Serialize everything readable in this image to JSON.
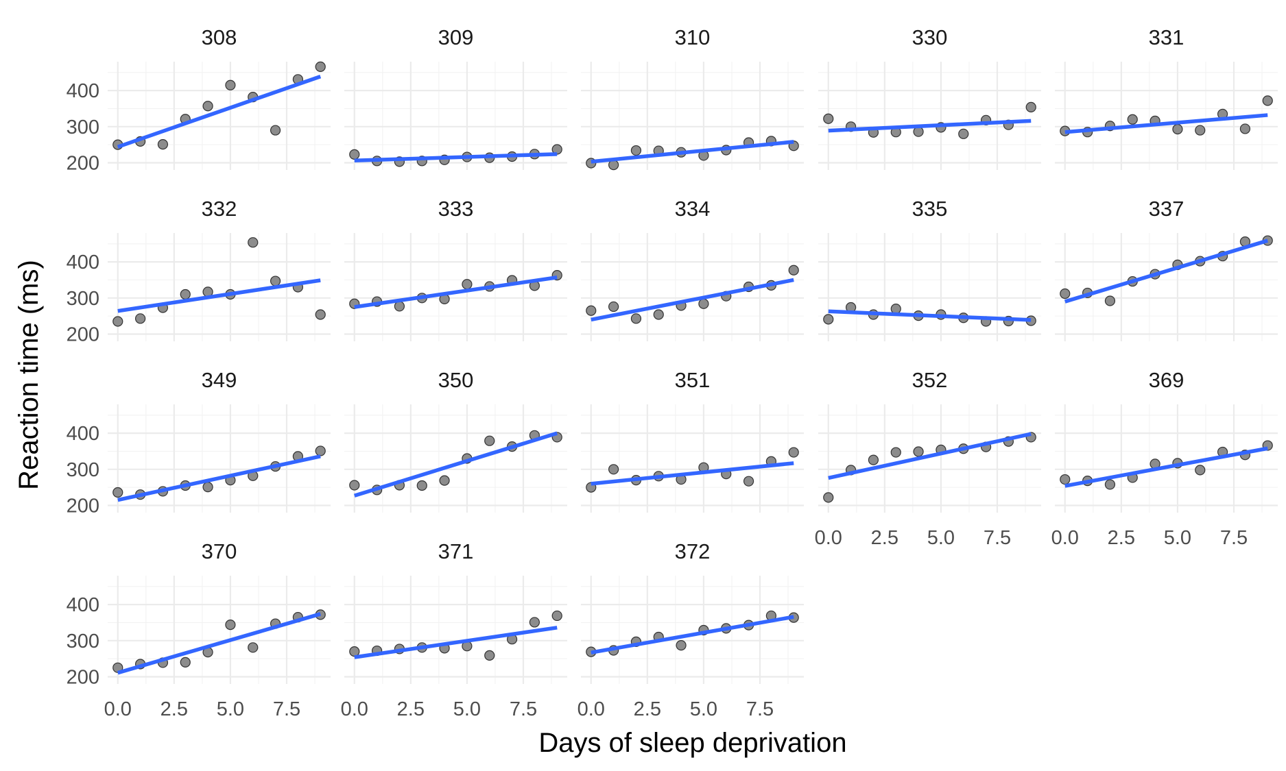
{
  "chart_data": {
    "type": "scatter",
    "subtitle": "",
    "xlabel": "Days of sleep deprivation",
    "ylabel": "Reaction time (ms)",
    "xlim": [
      -0.45,
      9.45
    ],
    "ylim": [
      180,
      480
    ],
    "x_ticks": [
      0,
      2.5,
      5,
      7.5
    ],
    "x_tick_labels": [
      "0.0",
      "2.5",
      "5.0",
      "7.5"
    ],
    "y_ticks": [
      200,
      300,
      400
    ],
    "y_tick_labels": [
      "200",
      "300",
      "400"
    ],
    "grid": true,
    "facet_ncol": 5,
    "point_color": "#8c8c8c",
    "line_color": "#3366ff",
    "x": [
      0,
      1,
      2,
      3,
      4,
      5,
      6,
      7,
      8,
      9
    ],
    "panels": [
      {
        "name": "308",
        "values": [
          250,
          259,
          251,
          321,
          357,
          415,
          382,
          290,
          431,
          466
        ],
        "fit": [
          244,
          439
        ]
      },
      {
        "name": "309",
        "values": [
          223,
          205,
          203,
          205,
          208,
          216,
          214,
          217,
          224,
          237
        ],
        "fit": [
          206,
          224
        ]
      },
      {
        "name": "310",
        "values": [
          199,
          194,
          234,
          233,
          229,
          220,
          235,
          256,
          260,
          247
        ],
        "fit": [
          203,
          258
        ]
      },
      {
        "name": "330",
        "values": [
          322,
          300,
          284,
          285,
          286,
          298,
          280,
          318,
          305,
          354
        ],
        "fit": [
          289,
          316
        ]
      },
      {
        "name": "331",
        "values": [
          288,
          285,
          302,
          320,
          316,
          293,
          290,
          335,
          294,
          372
        ],
        "fit": [
          285,
          332
        ]
      },
      {
        "name": "332",
        "values": [
          235,
          243,
          273,
          310,
          317,
          310,
          454,
          347,
          330,
          254
        ],
        "fit": [
          264,
          349
        ]
      },
      {
        "name": "333",
        "values": [
          284,
          290,
          277,
          300,
          297,
          338,
          332,
          349,
          334,
          363
        ],
        "fit": [
          275,
          357
        ]
      },
      {
        "name": "334",
        "values": [
          265,
          276,
          243,
          254,
          279,
          284,
          305,
          331,
          335,
          377
        ],
        "fit": [
          240,
          350
        ]
      },
      {
        "name": "335",
        "values": [
          241,
          274,
          254,
          270,
          251,
          254,
          245,
          235,
          236,
          237
        ],
        "fit": [
          263,
          239
        ]
      },
      {
        "name": "337",
        "values": [
          312,
          314,
          292,
          346,
          366,
          392,
          402,
          416,
          456,
          459
        ],
        "fit": [
          290,
          459
        ]
      },
      {
        "name": "349",
        "values": [
          236,
          230,
          239,
          255,
          251,
          270,
          282,
          308,
          336,
          351
        ],
        "fit": [
          215,
          336
        ]
      },
      {
        "name": "350",
        "values": [
          256,
          243,
          256,
          255,
          269,
          330,
          379,
          363,
          394,
          389
        ],
        "fit": [
          227,
          400
        ]
      },
      {
        "name": "351",
        "values": [
          250,
          300,
          270,
          281,
          272,
          305,
          287,
          267,
          322,
          347
        ],
        "fit": [
          260,
          317
        ]
      },
      {
        "name": "352",
        "values": [
          222,
          298,
          326,
          347,
          349,
          354,
          357,
          362,
          377,
          389
        ],
        "fit": [
          276,
          398
        ]
      },
      {
        "name": "369",
        "values": [
          272,
          268,
          258,
          277,
          315,
          317,
          298,
          348,
          340,
          366
        ],
        "fit": [
          254,
          358
        ]
      },
      {
        "name": "370",
        "values": [
          225,
          235,
          239,
          240,
          268,
          344,
          281,
          347,
          365,
          372
        ],
        "fit": [
          211,
          374
        ]
      },
      {
        "name": "371",
        "values": [
          270,
          272,
          277,
          281,
          279,
          285,
          259,
          304,
          351,
          369
        ],
        "fit": [
          254,
          336
        ]
      },
      {
        "name": "372",
        "values": [
          269,
          273,
          297,
          310,
          287,
          329,
          334,
          343,
          369,
          364
        ],
        "fit": [
          267,
          366
        ]
      }
    ]
  }
}
